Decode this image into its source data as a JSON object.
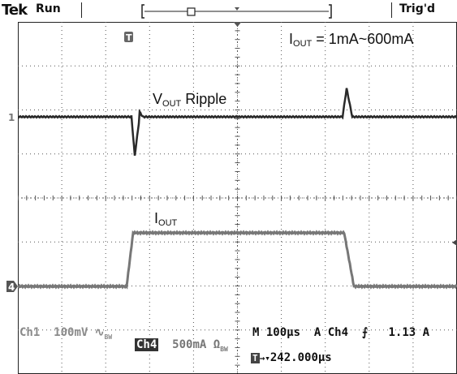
{
  "header": {
    "brand": "Tek",
    "run_state": "Run",
    "trigger_status": "Trig'd"
  },
  "annotations": {
    "iout_range_main": "I",
    "iout_range_sub": "OUT",
    "iout_range_value": " = 1mA~600mA",
    "vout_main": "V",
    "vout_sub": "OUT",
    "vout_rest": " Ripple",
    "iout_main": "I",
    "iout_sub": "OUT"
  },
  "channels": {
    "ch1_label": "Ch1",
    "ch1_scale": "100mV",
    "ch1_coupling": "∿",
    "ch1_bw": "BW",
    "ch1_marker": "1",
    "ch4_label": "Ch4",
    "ch4_scale": "500mA",
    "ch4_unit_symbol": "Ω",
    "ch4_bw": "BW",
    "ch4_marker": "4"
  },
  "timebase": {
    "horizontal": "M 100µs",
    "trigger_source": "A  Ch4",
    "trigger_slope": "⨍",
    "trigger_level": "1.13 A",
    "trigger_marker": "T",
    "position_marker": "T",
    "position": "242.000µs"
  },
  "colors": {
    "background": "#ffffff",
    "grid": "#555555",
    "ch1_trace": "#2a2a2a",
    "ch4_trace": "#777777"
  }
}
